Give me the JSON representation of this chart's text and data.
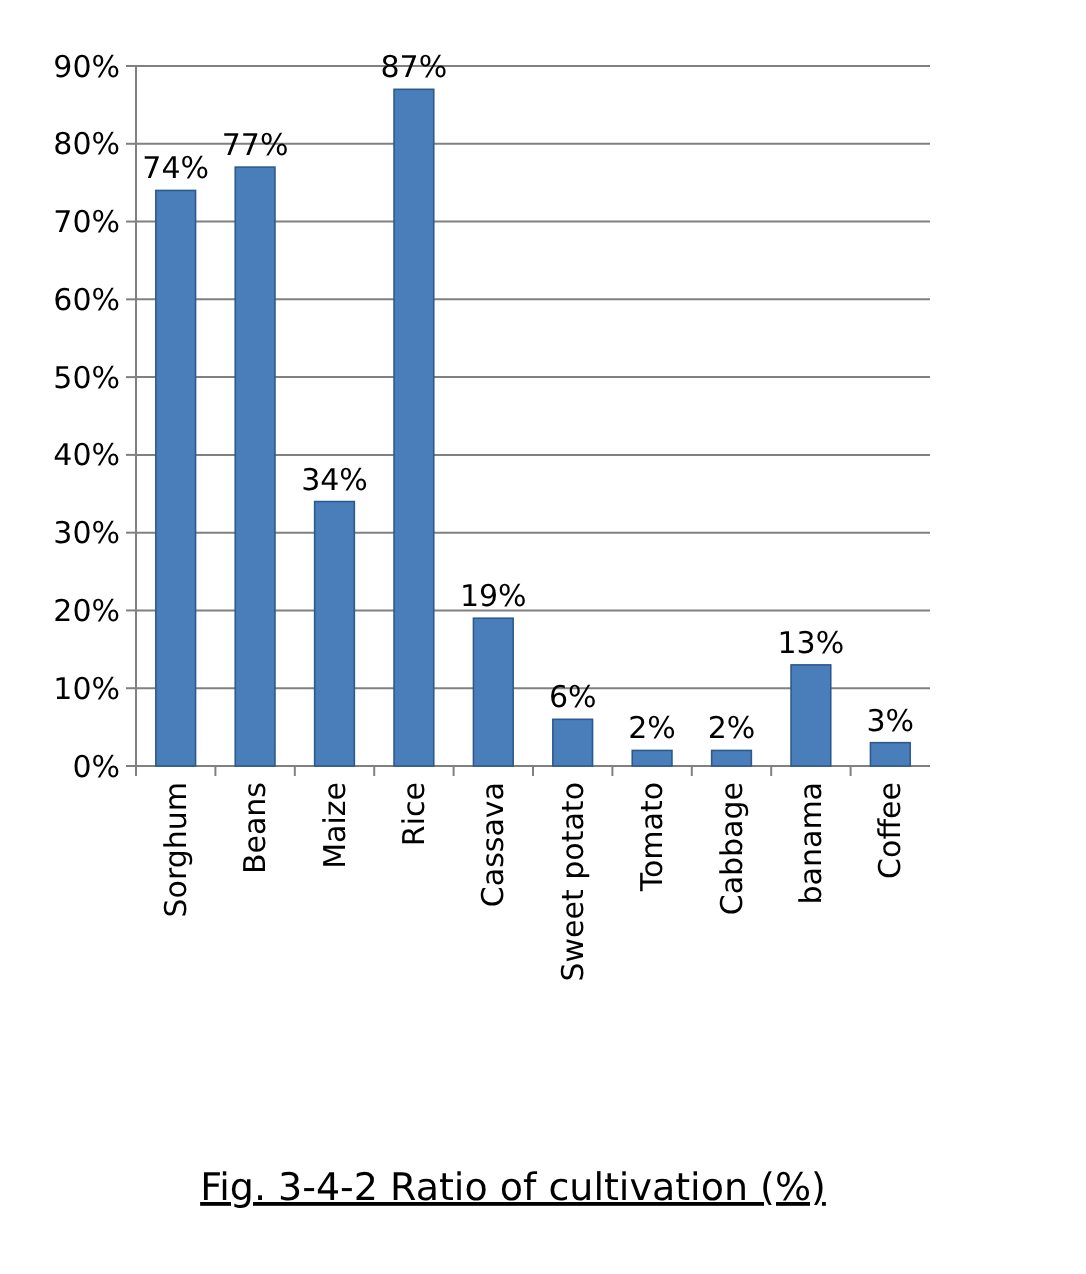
{
  "chart_data": {
    "type": "bar",
    "title": "Fig. 3-4-2 Ratio of cultivation (%)",
    "categories": [
      "Sorghum",
      "Beans",
      "Maize",
      "Rice",
      "Cassava",
      "Sweet potato",
      "Tomato",
      "Cabbage",
      "banama",
      "Coffee"
    ],
    "values": [
      74,
      77,
      34,
      87,
      19,
      6,
      2,
      2,
      13,
      3
    ],
    "value_labels": [
      "74%",
      "77%",
      "34%",
      "87%",
      "19%",
      "6%",
      "2%",
      "2%",
      "13%",
      "3%"
    ],
    "color": "#4a7ebb",
    "ylim": [
      0,
      90
    ],
    "yticks": [
      {
        "value": 0,
        "label": "0%"
      },
      {
        "value": 10,
        "label": "10%"
      },
      {
        "value": 20,
        "label": "20%"
      },
      {
        "value": 30,
        "label": "30%"
      },
      {
        "value": 40,
        "label": "40%"
      },
      {
        "value": 50,
        "label": "50%"
      },
      {
        "value": 60,
        "label": "60%"
      },
      {
        "value": 70,
        "label": "70%"
      },
      {
        "value": 80,
        "label": "80%"
      },
      {
        "value": 90,
        "label": "90%"
      }
    ],
    "grid": "y"
  }
}
